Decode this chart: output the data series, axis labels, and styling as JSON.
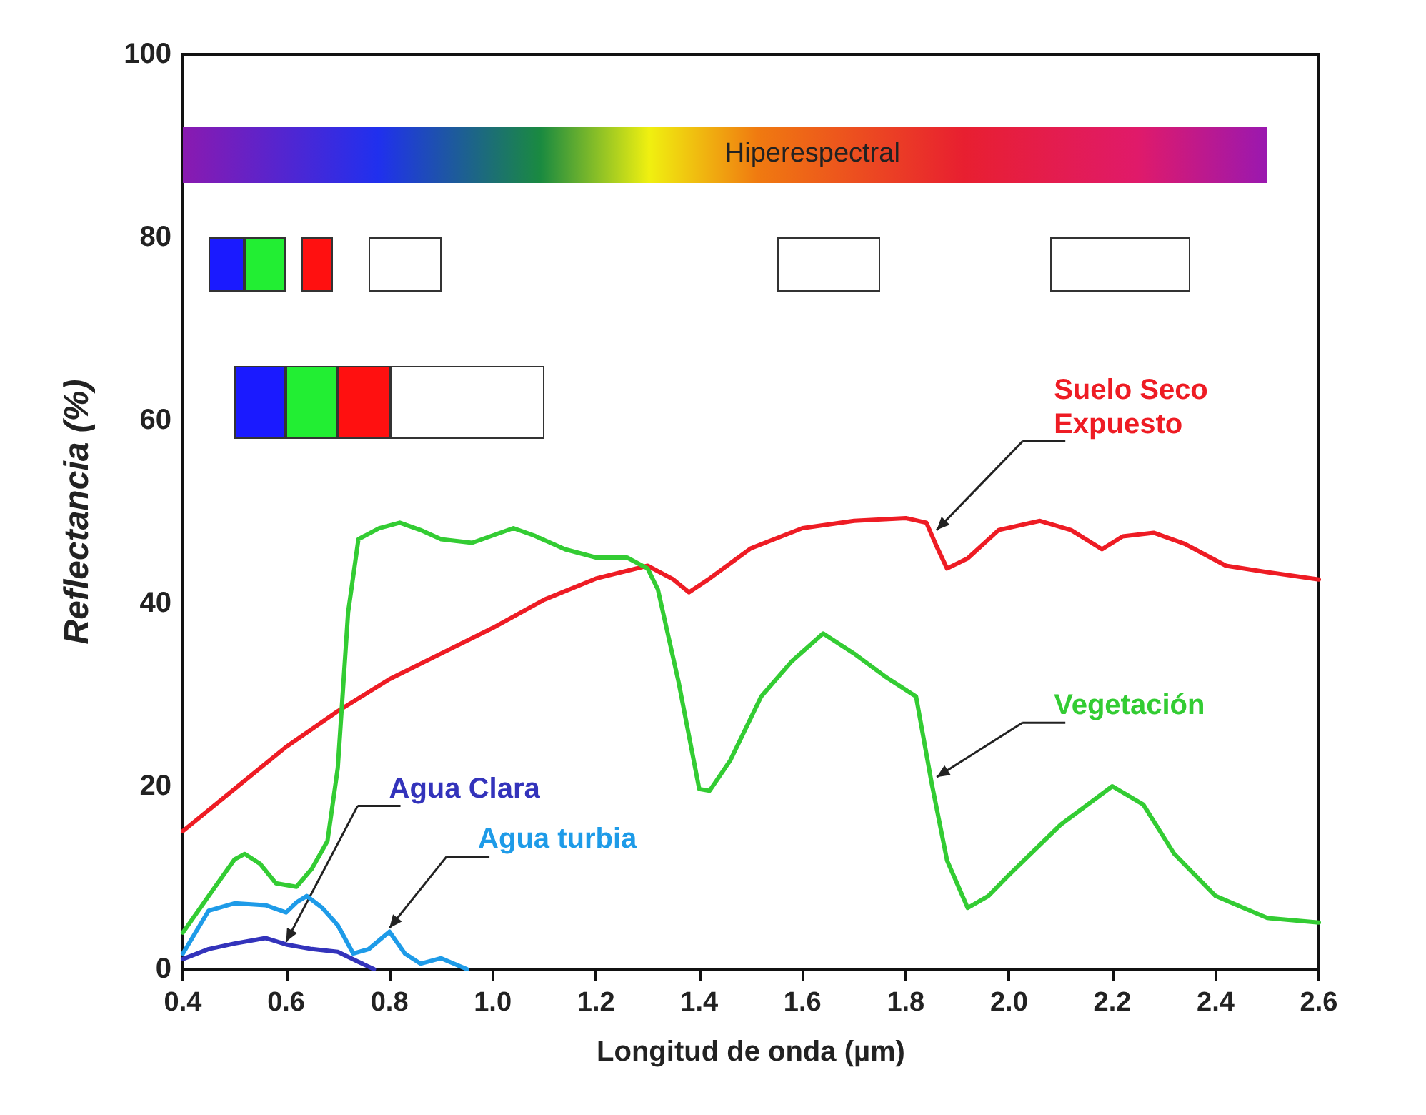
{
  "chart_data": {
    "type": "line",
    "xlabel": "Longitud de onda (µm)",
    "ylabel": "Reflectancia (%)",
    "xlim": [
      0.4,
      2.6
    ],
    "xticks": [
      {
        "value": 0.4,
        "label": "0.4"
      },
      {
        "value": 0.6,
        "label": "0.6"
      },
      {
        "value": 0.8,
        "label": "0.8"
      },
      {
        "value": 1.0,
        "label": "1.0"
      },
      {
        "value": 1.2,
        "label": "1.2"
      },
      {
        "value": 1.4,
        "label": "1.4"
      },
      {
        "value": 1.6,
        "label": "1.6"
      },
      {
        "value": 1.8,
        "label": "1.8"
      },
      {
        "value": 2.0,
        "label": "2.0"
      },
      {
        "value": 2.2,
        "label": "2.2"
      },
      {
        "value": 2.4,
        "label": "2.4"
      },
      {
        "value": 2.6,
        "label": "2.6"
      }
    ],
    "ylim": [
      0,
      100
    ],
    "yticks": [
      0,
      20,
      40,
      60,
      80,
      100
    ],
    "grid": false,
    "marker": "none",
    "line_style": "solid",
    "series": [
      {
        "color": "#ee1c24",
        "x": [
          0.4,
          0.5,
          0.6,
          0.7,
          0.8,
          0.9,
          1.0,
          1.1,
          1.2,
          1.3,
          1.35,
          1.38,
          1.42,
          1.5,
          1.6,
          1.7,
          1.8,
          1.84,
          1.86,
          1.88,
          1.92,
          1.98,
          2.06,
          2.12,
          2.18,
          2.22,
          2.28,
          2.34,
          2.42,
          2.5,
          2.6
        ],
        "values": [
          15.1,
          19.7,
          24.3,
          28.2,
          31.7,
          34.5,
          37.3,
          40.4,
          42.7,
          44.1,
          42.6,
          41.2,
          42.7,
          46,
          48.2,
          49,
          49.3,
          48.8,
          46.2,
          43.8,
          44.9,
          48,
          49,
          48,
          45.9,
          47.3,
          47.7,
          46.5,
          44.1,
          43.4,
          42.6
        ]
      },
      {
        "color": "#33cc33",
        "x": [
          0.4,
          0.45,
          0.5,
          0.52,
          0.55,
          0.58,
          0.62,
          0.65,
          0.68,
          0.7,
          0.72,
          0.74,
          0.78,
          0.82,
          0.86,
          0.9,
          0.96,
          1.0,
          1.04,
          1.08,
          1.14,
          1.2,
          1.26,
          1.3,
          1.32,
          1.36,
          1.4,
          1.42,
          1.46,
          1.52,
          1.58,
          1.64,
          1.7,
          1.76,
          1.82,
          1.85,
          1.88,
          1.92,
          1.96,
          2.0,
          2.1,
          2.2,
          2.26,
          2.32,
          2.4,
          2.5,
          2.6
        ],
        "values": [
          4,
          8,
          12,
          12.6,
          11.5,
          9.4,
          9,
          11,
          14,
          22,
          39,
          47,
          48.2,
          48.8,
          48,
          47,
          46.6,
          47.4,
          48.2,
          47.4,
          45.9,
          45,
          45,
          43.8,
          41.5,
          31.4,
          19.7,
          19.5,
          22.8,
          29.8,
          33.7,
          36.7,
          34.5,
          32,
          29.8,
          20.4,
          11.9,
          6.7,
          8,
          10.3,
          15.8,
          20,
          18,
          12.6,
          8,
          5.6,
          5.1
        ]
      },
      {
        "color": "#3333bb",
        "x": [
          0.4,
          0.45,
          0.5,
          0.56,
          0.6,
          0.65,
          0.7,
          0.74,
          0.77
        ],
        "values": [
          1.1,
          2.2,
          2.8,
          3.4,
          2.7,
          2.2,
          1.9,
          0.8,
          0
        ]
      },
      {
        "color": "#1e9be8",
        "x": [
          0.4,
          0.45,
          0.5,
          0.56,
          0.6,
          0.62,
          0.64,
          0.67,
          0.7,
          0.73,
          0.76,
          0.8,
          0.83,
          0.86,
          0.9,
          0.95
        ],
        "values": [
          1.7,
          6.4,
          7.2,
          7,
          6.2,
          7.3,
          8,
          6.7,
          4.8,
          1.7,
          2.2,
          4.1,
          1.7,
          0.6,
          1.2,
          0
        ]
      }
    ],
    "annotations": [
      {
        "text": "Suelo Seco\nExpuesto",
        "x": 1.86,
        "y": 48
      },
      {
        "text": "Vegetación",
        "x": 1.86,
        "y": 21
      },
      {
        "text": "Agua Clara",
        "x": 0.6,
        "y": 3
      },
      {
        "text": "Agua turbia",
        "x": 0.8,
        "y": 4.5
      },
      "Hiperespectral"
    ]
  }
}
